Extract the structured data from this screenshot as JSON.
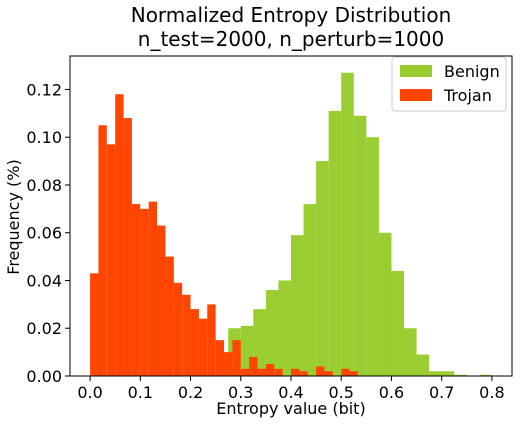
{
  "chart_data": {
    "type": "bar",
    "title_line1": "Normalized Entropy Distribution",
    "title_line2": "n_test=2000, n_perturb=1000",
    "xlabel": "Entropy value (bit)",
    "ylabel": "Frequency (%)",
    "xlim": [
      -0.04,
      0.84
    ],
    "ylim": [
      0,
      0.134
    ],
    "xticks": [
      0.0,
      0.1,
      0.2,
      0.3,
      0.4,
      0.5,
      0.6,
      0.7,
      0.8
    ],
    "xtick_labels": [
      "0.0",
      "0.1",
      "0.2",
      "0.3",
      "0.4",
      "0.5",
      "0.6",
      "0.7",
      "0.8"
    ],
    "yticks": [
      0.0,
      0.02,
      0.04,
      0.06,
      0.08,
      0.1,
      0.12
    ],
    "ytick_labels": [
      "0.00",
      "0.02",
      "0.04",
      "0.06",
      "0.08",
      "0.10",
      "0.12"
    ],
    "grid": false,
    "legend_position": "top-right",
    "series": [
      {
        "name": "Benign",
        "color": "#9acd32",
        "bins": [
          [
            0.275,
            0.3,
            0.02
          ],
          [
            0.3,
            0.325,
            0.021
          ],
          [
            0.325,
            0.35,
            0.028
          ],
          [
            0.35,
            0.375,
            0.036
          ],
          [
            0.375,
            0.4,
            0.04
          ],
          [
            0.4,
            0.425,
            0.059
          ],
          [
            0.425,
            0.45,
            0.072
          ],
          [
            0.45,
            0.475,
            0.09
          ],
          [
            0.475,
            0.5,
            0.111
          ],
          [
            0.5,
            0.525,
            0.127
          ],
          [
            0.525,
            0.55,
            0.109
          ],
          [
            0.55,
            0.575,
            0.1
          ],
          [
            0.575,
            0.6,
            0.06
          ],
          [
            0.6,
            0.625,
            0.044
          ],
          [
            0.625,
            0.65,
            0.02
          ],
          [
            0.65,
            0.675,
            0.009
          ],
          [
            0.675,
            0.7,
            0.002
          ],
          [
            0.7,
            0.725,
            0.002
          ],
          [
            0.725,
            0.75,
            0.0005
          ],
          [
            0.775,
            0.8,
            0.0005
          ]
        ]
      },
      {
        "name": "Trojan",
        "color": "#ff4500",
        "bins": [
          [
            0.0,
            0.0167,
            0.043
          ],
          [
            0.0167,
            0.0333,
            0.105
          ],
          [
            0.0333,
            0.05,
            0.097
          ],
          [
            0.05,
            0.0667,
            0.118
          ],
          [
            0.0667,
            0.0833,
            0.108
          ],
          [
            0.0833,
            0.1,
            0.072
          ],
          [
            0.1,
            0.1167,
            0.07
          ],
          [
            0.1167,
            0.1333,
            0.073
          ],
          [
            0.1333,
            0.15,
            0.063
          ],
          [
            0.15,
            0.1667,
            0.05
          ],
          [
            0.1667,
            0.1833,
            0.039
          ],
          [
            0.1833,
            0.2,
            0.034
          ],
          [
            0.2,
            0.2167,
            0.028
          ],
          [
            0.2167,
            0.2333,
            0.024
          ],
          [
            0.2333,
            0.25,
            0.03
          ],
          [
            0.25,
            0.2667,
            0.015
          ],
          [
            0.2667,
            0.2833,
            0.01
          ],
          [
            0.2833,
            0.3,
            0.015
          ],
          [
            0.3,
            0.3167,
            0.003
          ],
          [
            0.3167,
            0.3333,
            0.008
          ],
          [
            0.3333,
            0.35,
            0.003
          ],
          [
            0.35,
            0.3667,
            0.005
          ],
          [
            0.3667,
            0.3833,
            0.003
          ],
          [
            0.4,
            0.4167,
            0.003
          ],
          [
            0.4167,
            0.4333,
            0.002
          ],
          [
            0.45,
            0.4667,
            0.004
          ],
          [
            0.4667,
            0.4833,
            0.002
          ],
          [
            0.5,
            0.5167,
            0.003
          ],
          [
            0.5167,
            0.5333,
            0.002
          ]
        ]
      }
    ]
  }
}
